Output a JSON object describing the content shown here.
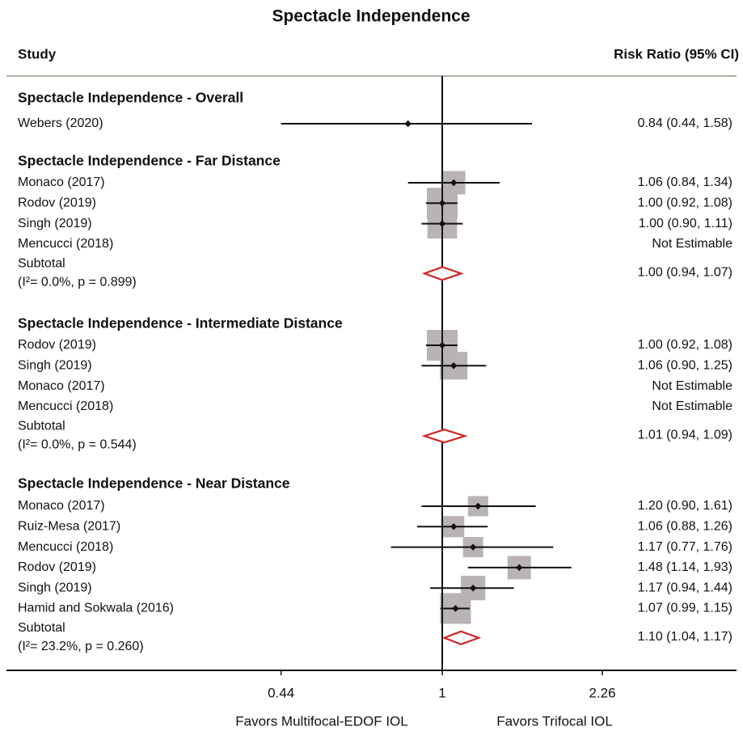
{
  "chart_data": {
    "type": "forest",
    "title": "Spectacle Independence",
    "column_headers": {
      "study": "Study",
      "effect": "Risk Ratio (95% CI)"
    },
    "x_scale": "log",
    "xlim": [
      0.44,
      2.26
    ],
    "reference_line": 1,
    "x_ticks": [
      {
        "value": 0.44,
        "label": "0.44"
      },
      {
        "value": 1,
        "label": "1"
      },
      {
        "value": 2.26,
        "label": "2.26"
      }
    ],
    "favors_left": "Favors Multifocal-EDOF IOL",
    "favors_right": "Favors Trifocal IOL",
    "colors": {
      "box": "#b9b3b3",
      "diamond": "#cc2a2a",
      "line": "#111111",
      "divider": "#b5aea4"
    },
    "groups": [
      {
        "title": "Spectacle Independence - Overall",
        "studies": [
          {
            "label": "Webers (2020)",
            "rr": 0.84,
            "lo": 0.44,
            "hi": 1.58,
            "weight": 0,
            "text": "0.84 (0.44, 1.58)"
          }
        ]
      },
      {
        "title": "Spectacle Independence - Far Distance",
        "studies": [
          {
            "label": "Monaco (2017)",
            "rr": 1.06,
            "lo": 0.84,
            "hi": 1.34,
            "weight": 0.65,
            "text": "1.06 (0.84, 1.34)"
          },
          {
            "label": "Rodov (2019)",
            "rr": 1.0,
            "lo": 0.92,
            "hi": 1.08,
            "weight": 1.0,
            "text": "1.00 (0.92, 1.08)"
          },
          {
            "label": "Singh (2019)",
            "rr": 1.0,
            "lo": 0.9,
            "hi": 1.11,
            "weight": 0.95,
            "text": "1.00 (0.90, 1.11)"
          },
          {
            "label": "Mencucci (2018)",
            "rr": null,
            "lo": null,
            "hi": null,
            "weight": 0,
            "text": "Not Estimable"
          }
        ],
        "subtotal": {
          "label": "Subtotal",
          "stats": "(I²= 0.0%, p = 0.899)",
          "rr": 1.0,
          "lo": 0.94,
          "hi": 1.07,
          "text": "1.00 (0.94, 1.07)"
        }
      },
      {
        "title": "Spectacle Independence - Intermediate Distance",
        "studies": [
          {
            "label": "Rodov (2019)",
            "rr": 1.0,
            "lo": 0.92,
            "hi": 1.08,
            "weight": 1.0,
            "text": "1.00 (0.92, 1.08)"
          },
          {
            "label": "Singh (2019)",
            "rr": 1.06,
            "lo": 0.9,
            "hi": 1.25,
            "weight": 0.85,
            "text": "1.06 (0.90, 1.25)"
          },
          {
            "label": "Monaco (2017)",
            "rr": null,
            "lo": null,
            "hi": null,
            "weight": 0,
            "text": "Not Estimable"
          },
          {
            "label": "Mencucci (2018)",
            "rr": null,
            "lo": null,
            "hi": null,
            "weight": 0,
            "text": "Not Estimable"
          }
        ],
        "subtotal": {
          "label": "Subtotal",
          "stats": "(I²= 0.0%, p = 0.544)",
          "rr": 1.01,
          "lo": 0.94,
          "hi": 1.09,
          "text": "1.01 (0.94, 1.09)"
        }
      },
      {
        "title": "Spectacle Independence - Near Distance",
        "studies": [
          {
            "label": "Monaco (2017)",
            "rr": 1.2,
            "lo": 0.9,
            "hi": 1.61,
            "weight": 0.5,
            "text": "1.20 (0.90, 1.61)"
          },
          {
            "label": "Ruiz-Mesa (2017)",
            "rr": 1.06,
            "lo": 0.88,
            "hi": 1.26,
            "weight": 0.55,
            "text": "1.06 (0.88, 1.26)"
          },
          {
            "label": "Mencucci (2018)",
            "rr": 1.17,
            "lo": 0.77,
            "hi": 1.76,
            "weight": 0.5,
            "text": "1.17 (0.77, 1.76)"
          },
          {
            "label": "Rodov (2019)",
            "rr": 1.48,
            "lo": 1.14,
            "hi": 1.93,
            "weight": 0.65,
            "text": "1.48 (1.14, 1.93)"
          },
          {
            "label": "Singh (2019)",
            "rr": 1.17,
            "lo": 0.94,
            "hi": 1.44,
            "weight": 0.7,
            "text": "1.17 (0.94, 1.44)"
          },
          {
            "label": "Hamid and Sokwala (2016)",
            "rr": 1.07,
            "lo": 0.99,
            "hi": 1.15,
            "weight": 1.0,
            "text": "1.07 (0.99, 1.15)"
          }
        ],
        "subtotal": {
          "label": "Subtotal",
          "stats": "(I²= 23.2%, p = 0.260)",
          "rr": 1.1,
          "lo": 1.04,
          "hi": 1.17,
          "text": "1.10 (1.04, 1.17)"
        }
      }
    ]
  }
}
